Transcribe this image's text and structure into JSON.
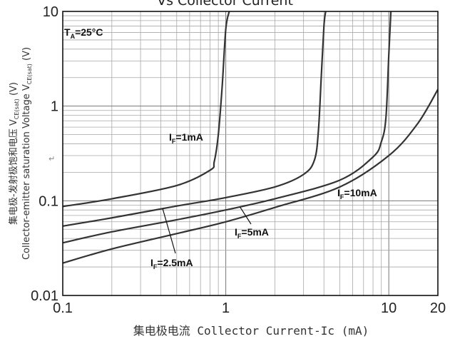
{
  "title": "Vs Collector Current",
  "artifact_mark": "↵",
  "chart_data": {
    "type": "line",
    "x_scale": "log",
    "y_scale": "log",
    "xlim": [
      0.1,
      20
    ],
    "ylim": [
      0.01,
      10
    ],
    "grid": true,
    "xlabel": "集电极电流 Collector Current-Ic (mA)",
    "ylabel_line1": "集电极-发射极饱和电压 V",
    "ylabel_line1_sub": "CE(sat)",
    "ylabel_line1_end": " (V)",
    "ylabel_line2": "Collector-emitter saturation Voltage V",
    "ylabel_line2_sub": "CE(sat)",
    "ylabel_line2_end": " (V)",
    "x_ticks": [
      {
        "value": 0.1,
        "label": "0.1"
      },
      {
        "value": 1,
        "label": "1"
      },
      {
        "value": 10,
        "label": "10"
      },
      {
        "value": 20,
        "label": "20"
      }
    ],
    "y_ticks": [
      {
        "value": 0.01,
        "label": "0.01"
      },
      {
        "value": 0.1,
        "label": "0.1"
      },
      {
        "value": 1,
        "label": "1"
      },
      {
        "value": 10,
        "label": "10"
      }
    ],
    "annotations": {
      "ta": {
        "main": "T",
        "sub": "A",
        "rest": "=25°C"
      },
      "if1": {
        "main": "I",
        "sub": "F",
        "rest": "=1mA"
      },
      "if25": {
        "main": "I",
        "sub": "F",
        "rest": "=2.5mA"
      },
      "if5": {
        "main": "I",
        "sub": "F",
        "rest": "=5mA"
      },
      "if10": {
        "main": "I",
        "sub": "F",
        "rest": "=10mA"
      }
    },
    "series": [
      {
        "key": "if1",
        "color": "#333333",
        "x": [
          0.1,
          0.2,
          0.5,
          0.8,
          0.85,
          0.9,
          0.95,
          1.0,
          1.05
        ],
        "y": [
          0.087,
          0.105,
          0.145,
          0.21,
          0.26,
          0.5,
          1.6,
          6.5,
          10
        ]
      },
      {
        "key": "if25",
        "color": "#333333",
        "x": [
          0.1,
          0.2,
          0.5,
          1,
          2,
          3,
          3.5,
          3.7,
          3.85,
          4.0,
          4.1
        ],
        "y": [
          0.054,
          0.066,
          0.088,
          0.108,
          0.14,
          0.19,
          0.27,
          0.55,
          2.0,
          7.0,
          10
        ]
      },
      {
        "key": "if5",
        "color": "#333333",
        "x": [
          0.1,
          0.2,
          0.5,
          1,
          2,
          5,
          8,
          9,
          9.6,
          10,
          10.3
        ],
        "y": [
          0.036,
          0.047,
          0.063,
          0.08,
          0.105,
          0.165,
          0.29,
          0.42,
          0.75,
          3.5,
          10
        ]
      },
      {
        "key": "if10",
        "color": "#333333",
        "x": [
          0.1,
          0.2,
          0.5,
          1,
          2,
          5,
          10,
          15,
          20
        ],
        "y": [
          0.022,
          0.031,
          0.045,
          0.06,
          0.085,
          0.14,
          0.3,
          0.65,
          1.5
        ]
      }
    ]
  }
}
